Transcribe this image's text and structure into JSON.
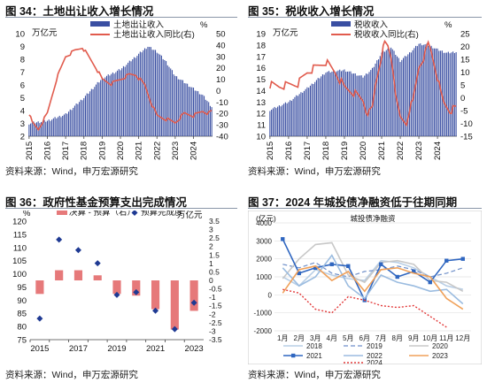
{
  "panels": {
    "p34": {
      "title": "图 34：土地出让收入增长情况",
      "source": "资料来源：Wind，申万宏源研究"
    },
    "p35": {
      "title": "图 35：税收收入增长情况",
      "source": "资料来源：Wind，申万宏源研究"
    },
    "p36": {
      "title": "图 36：政府性基金预算支出完成情况",
      "source": "资料来源：Wind，申万宏源研究"
    },
    "p37": {
      "title": "图 37：2024 年城投债净融资低于往期同期",
      "source": "资料来源：Wind，申万宏源研究"
    }
  },
  "chart_data": [
    {
      "id": "c34",
      "type": "bar",
      "left_unit": "万亿元",
      "right_unit": "%",
      "ylim_left": [
        2,
        10
      ],
      "yticks_left": [
        2,
        3,
        4,
        5,
        6,
        7,
        8,
        9,
        10
      ],
      "ylim_right": [
        -40,
        50
      ],
      "yticks_right": [
        -40,
        -30,
        -20,
        -10,
        0,
        10,
        20,
        30,
        40,
        50
      ],
      "xticks": [
        "2015",
        "2016",
        "2017",
        "2018",
        "2019",
        "2020",
        "2021",
        "2022",
        "2023",
        "2024"
      ],
      "series": [
        {
          "name": "土地出让收入",
          "kind": "bar",
          "axis": "left",
          "color": "#3a4fa2",
          "anchors": [
            [
              0,
              3.0
            ],
            [
              12,
              3.2
            ],
            [
              24,
              3.7
            ],
            [
              36,
              5.0
            ],
            [
              48,
              6.5
            ],
            [
              60,
              7.2
            ],
            [
              72,
              8.4
            ],
            [
              78,
              9.0
            ],
            [
              84,
              8.6
            ],
            [
              90,
              7.8
            ],
            [
              96,
              6.7
            ],
            [
              108,
              5.7
            ],
            [
              114,
              5.2
            ],
            [
              120,
              4.3
            ]
          ]
        },
        {
          "name": "土地出让收入同比(右)",
          "kind": "line",
          "axis": "right",
          "color": "#e15b4d",
          "anchors": [
            [
              0,
              -20
            ],
            [
              2,
              -28
            ],
            [
              6,
              -34
            ],
            [
              12,
              -20
            ],
            [
              18,
              10
            ],
            [
              24,
              30
            ],
            [
              30,
              35
            ],
            [
              35,
              38
            ],
            [
              38,
              32
            ],
            [
              44,
              20
            ],
            [
              48,
              10
            ],
            [
              54,
              6
            ],
            [
              60,
              10
            ],
            [
              66,
              14
            ],
            [
              70,
              14
            ],
            [
              76,
              5
            ],
            [
              80,
              -10
            ],
            [
              84,
              -22
            ],
            [
              90,
              -25
            ],
            [
              96,
              -28
            ],
            [
              102,
              -20
            ],
            [
              108,
              -22
            ],
            [
              114,
              -18
            ],
            [
              118,
              -20
            ],
            [
              120,
              -18
            ]
          ]
        }
      ]
    },
    {
      "id": "c35",
      "type": "bar",
      "left_unit": "万亿元",
      "right_unit": "%",
      "ylim_left": [
        10,
        19
      ],
      "yticks_left": [
        10,
        11,
        12,
        13,
        14,
        15,
        16,
        17,
        18,
        19
      ],
      "ylim_right": [
        -15,
        25
      ],
      "yticks_right": [
        -15,
        -10,
        -5,
        0,
        5,
        10,
        15,
        20,
        25
      ],
      "xticks": [
        "2015",
        "2016",
        "2017",
        "2018",
        "2019",
        "2020",
        "2021",
        "2022",
        "2023",
        "2024"
      ],
      "series": [
        {
          "name": "税收收入",
          "kind": "bar",
          "axis": "left",
          "color": "#3a4fa2",
          "anchors": [
            [
              0,
              12.3
            ],
            [
              12,
              13.0
            ],
            [
              24,
              14.2
            ],
            [
              36,
              15.6
            ],
            [
              48,
              15.8
            ],
            [
              60,
              15.2
            ],
            [
              66,
              15.9
            ],
            [
              72,
              17.3
            ],
            [
              78,
              17.8
            ],
            [
              84,
              16.6
            ],
            [
              90,
              17.3
            ],
            [
              96,
              18.1
            ],
            [
              102,
              18.0
            ],
            [
              108,
              17.6
            ],
            [
              114,
              17.3
            ],
            [
              120,
              17.4
            ]
          ]
        },
        {
          "name": "税收收入同比(右)",
          "kind": "line",
          "axis": "right",
          "color": "#e15b4d",
          "anchors": [
            [
              0,
              5
            ],
            [
              6,
              4.5
            ],
            [
              12,
              5
            ],
            [
              18,
              5.5
            ],
            [
              24,
              10
            ],
            [
              30,
              12
            ],
            [
              36,
              14
            ],
            [
              42,
              10
            ],
            [
              48,
              4
            ],
            [
              54,
              2
            ],
            [
              60,
              -1
            ],
            [
              62,
              -5
            ],
            [
              64,
              -6
            ],
            [
              66,
              -4
            ],
            [
              68,
              5
            ],
            [
              72,
              17
            ],
            [
              74,
              21
            ],
            [
              76,
              20
            ],
            [
              78,
              16
            ],
            [
              80,
              8
            ],
            [
              82,
              -3
            ],
            [
              84,
              -8
            ],
            [
              88,
              -10
            ],
            [
              90,
              -4
            ],
            [
              92,
              -2
            ],
            [
              96,
              12
            ],
            [
              100,
              17
            ],
            [
              102,
              21
            ],
            [
              104,
              18
            ],
            [
              108,
              8
            ],
            [
              110,
              2
            ],
            [
              112,
              -2
            ],
            [
              116,
              -5
            ],
            [
              120,
              -4
            ]
          ]
        }
      ]
    },
    {
      "id": "c36",
      "type": "bar",
      "left_unit": "%",
      "right_unit": "万亿元",
      "ylim_left": [
        75,
        120
      ],
      "yticks_left": [
        75,
        80,
        85,
        90,
        95,
        100,
        105,
        110,
        115,
        120
      ],
      "ylim_right": [
        -3.5,
        3.5
      ],
      "yticks_right": [
        -3.5,
        -3,
        -2.5,
        -2,
        -1.5,
        -1,
        -0.5,
        0,
        0.5,
        1,
        1.5,
        2,
        2.5,
        3,
        3.5
      ],
      "categories": [
        "2015",
        "2016",
        "2017",
        "2018",
        "2019",
        "2020",
        "2021",
        "2022",
        "2023"
      ],
      "xtick_labels": [
        "2015",
        "",
        "2017",
        "",
        "2019",
        "",
        "2021",
        "",
        "2023"
      ],
      "series": [
        {
          "name": "决算 - 预算（右）",
          "kind": "bar",
          "axis": "right",
          "color": "#e6797a",
          "values": [
            -0.8,
            0.6,
            0.6,
            0.3,
            -0.8,
            -0.9,
            -1.7,
            -2.9,
            -1.8
          ]
        },
        {
          "name": "预算完成度",
          "kind": "scatter",
          "axis": "left",
          "color": "#1f3a93",
          "values": [
            83,
            113,
            109,
            104,
            92,
            93,
            86,
            79,
            89
          ]
        }
      ]
    },
    {
      "id": "c37",
      "type": "line",
      "unit": "(亿元)",
      "title": "城投债净融资",
      "ylim": [
        -2000,
        4000
      ],
      "yticks": [
        -2000,
        -1000,
        0,
        1000,
        2000,
        3000,
        4000
      ],
      "categories": [
        "1月",
        "2月",
        "3月",
        "4月",
        "5月",
        "6月",
        "7月",
        "8月",
        "9月",
        "10月",
        "11月",
        "12月"
      ],
      "series": [
        {
          "name": "2018",
          "color": "#b9cfe6",
          "dash": "",
          "width": 1.6,
          "values": [
            1000,
            500,
            1400,
            1100,
            900,
            800,
            1900,
            1800,
            1500,
            1000,
            500,
            300
          ]
        },
        {
          "name": "2019",
          "color": "#6f8fc9",
          "dash": "5,3",
          "width": 1.2,
          "values": [
            1700,
            1500,
            1800,
            1200,
            1000,
            1300,
            1400,
            1600,
            1400,
            1000,
            1200,
            1500
          ]
        },
        {
          "name": "2020",
          "color": "#c8c8c8",
          "dash": "",
          "width": 1.6,
          "values": [
            900,
            2000,
            2800,
            2900,
            1100,
            700,
            1800,
            1900,
            1700,
            800,
            700,
            200
          ]
        },
        {
          "name": "2021",
          "color": "#2f66c0",
          "dash": "",
          "width": 1.6,
          "marker": true,
          "values": [
            3100,
            1200,
            1500,
            1700,
            1600,
            -300,
            1700,
            1000,
            1300,
            700,
            1900,
            2000
          ]
        },
        {
          "name": "2022",
          "color": "#9bbce0",
          "dash": "",
          "width": 1.6,
          "values": [
            1500,
            500,
            1000,
            2200,
            500,
            -200,
            1100,
            700,
            500,
            200,
            300,
            -500
          ]
        },
        {
          "name": "2023",
          "color": "#f0a15a",
          "dash": "",
          "width": 1.6,
          "values": [
            100,
            1400,
            1600,
            800,
            1300,
            200,
            1400,
            1500,
            1200,
            1000,
            -200,
            -800
          ]
        },
        {
          "name": "2024",
          "color": "#e23a3a",
          "dash": "2,2",
          "width": 1.4,
          "values": [
            300,
            100,
            -800,
            -1000,
            -100,
            -300,
            -600,
            -700,
            -600,
            -1200,
            -1800,
            null
          ]
        }
      ]
    }
  ]
}
